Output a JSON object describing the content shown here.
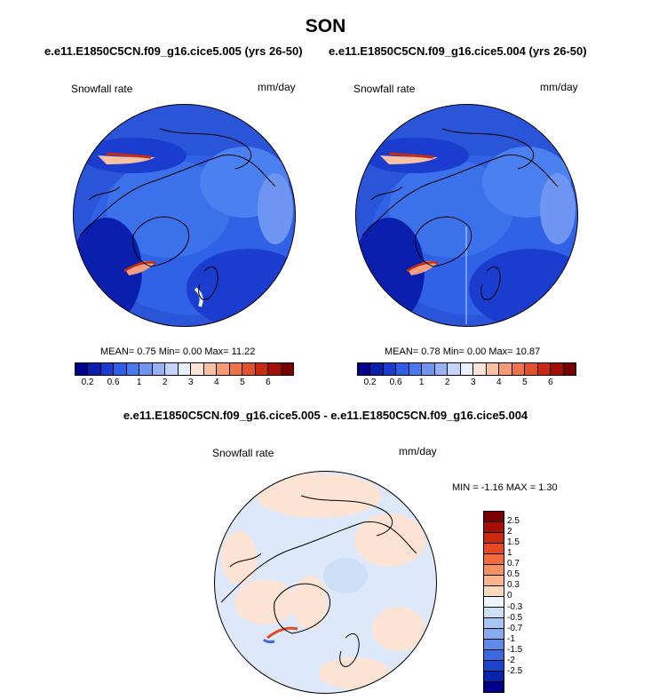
{
  "title": "SON",
  "panels": [
    {
      "case_title": "e.e11.E1850C5CN.f09_g16.cice5.005 (yrs 26-50)",
      "variable": "Snowfall rate",
      "units": "mm/day",
      "stats": "MEAN=  0.75  Min=   0.00  Max=  11.22"
    },
    {
      "case_title": "e.e11.E1850C5CN.f09_g16.cice5.004 (yrs 26-50)",
      "variable": "Snowfall rate",
      "units": "mm/day",
      "stats": "MEAN=  0.78  Min=   0.00  Max=  10.87"
    }
  ],
  "abs_colorbar": {
    "colors": [
      "#00008b",
      "#0a1fae",
      "#1a3dd0",
      "#2f5ee6",
      "#4a78ee",
      "#6f95f2",
      "#96b3f6",
      "#c3d5fa",
      "#e8f1fd",
      "#fde3d3",
      "#f9c1a4",
      "#f49a74",
      "#ee734b",
      "#e3502c",
      "#c82a12",
      "#a01004",
      "#7a0000"
    ],
    "ticks": [
      "0.2",
      "0.6",
      "1",
      "2",
      "3",
      "4",
      "5",
      "6"
    ]
  },
  "diff_panel": {
    "title": "e.e11.E1850C5CN.f09_g16.cice5.005 - e.e11.E1850C5CN.f09_g16.cice5.004",
    "variable": "Snowfall rate",
    "units": "mm/day",
    "minmax": "MIN =  -1.16 MAX =   1.30"
  },
  "diff_colorbar": {
    "colors": [
      "#7a0000",
      "#a50f05",
      "#cc2a10",
      "#e74a20",
      "#f26b3c",
      "#f6925f",
      "#f9b48c",
      "#fcd9bb",
      "#eef4fb",
      "#cde0f7",
      "#a9c6f2",
      "#86abee",
      "#5e8be9",
      "#3a68e0",
      "#1b44cf",
      "#0a23ac",
      "#00008b"
    ],
    "ticks": [
      "2.5",
      "2",
      "1.5",
      "1",
      "0.7",
      "0.5",
      "0.3",
      "0",
      "-0.3",
      "-0.5",
      "-0.7",
      "-1",
      "-1.5",
      "-2",
      "-2.5"
    ]
  }
}
